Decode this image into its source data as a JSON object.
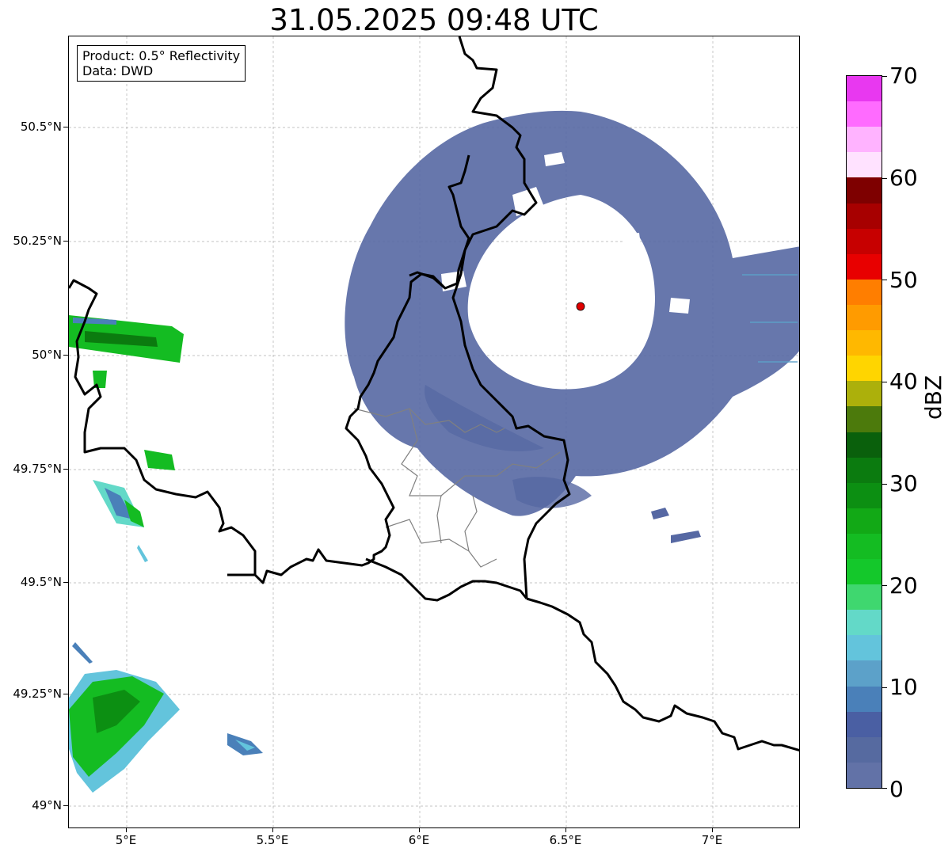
{
  "title": "31.05.2025 09:48 UTC",
  "info": {
    "product": "Product: 0.5° Reflectivity",
    "data": "Data: DWD"
  },
  "axes": {
    "lat_labels": [
      "50.5°N",
      "50.25°N",
      "50°N",
      "49.75°N",
      "49.5°N",
      "49.25°N",
      "49°N"
    ],
    "lon_labels": [
      "5°E",
      "5.5°E",
      "6°E",
      "6.5°E",
      "7°E"
    ]
  },
  "colorbar": {
    "unit": "dBZ",
    "tick_labels": [
      "70",
      "60",
      "50",
      "40",
      "30",
      "20",
      "10",
      "0"
    ],
    "colors": [
      "#6272a7",
      "#566aa0",
      "#4a5fa3",
      "#4a80b9",
      "#5ca1c9",
      "#63c4dc",
      "#63d9c8",
      "#3fd76f",
      "#14c82b",
      "#14bc22",
      "#12a916",
      "#0c8f12",
      "#0b7b0f",
      "#0a600c",
      "#4c7a0c",
      "#acb00b",
      "#ffd500",
      "#ffb800",
      "#ff9b00",
      "#ff7e00",
      "#e80000",
      "#c70000",
      "#a70000",
      "#7e0000",
      "#ffe2ff",
      "#ffb3ff",
      "#ff6bff",
      "#e838f0"
    ]
  },
  "marker": {
    "name": "radar site",
    "color": "#e00000"
  },
  "colors": {
    "echo": "#5668a3",
    "border": "#000000",
    "admin": "#808080",
    "grid": "#b0b0b0"
  }
}
